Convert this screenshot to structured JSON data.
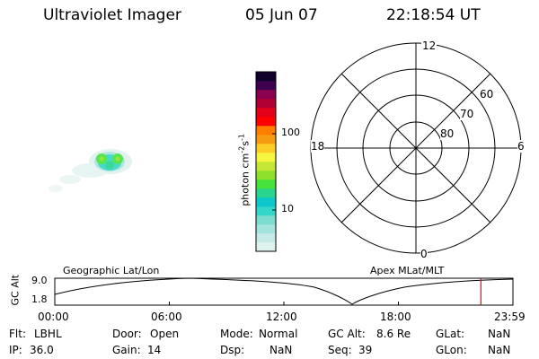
{
  "header": {
    "instrument": "Ultraviolet Imager",
    "date": "05 Jun 07",
    "time": "22:18:54 UT"
  },
  "colorbar": {
    "label_main": "photon cm",
    "label_exp1": "-2",
    "label_mid": "s",
    "label_exp2": "-1",
    "tick_100": "100",
    "tick_10": "10",
    "colors": [
      "#dff2ee",
      "#c6ebe7",
      "#a4e4dc",
      "#7cdccf",
      "#33d6c8",
      "#0ec7cc",
      "#28d48e",
      "#46e23b",
      "#8ee02b",
      "#c4e634",
      "#f6f83f",
      "#fbcd26",
      "#f49b12",
      "#ff7e00",
      "#ff0000",
      "#e30019",
      "#b10033",
      "#8c0050",
      "#3f0050",
      "#10002a"
    ]
  },
  "polar": {
    "mlt_top": "12",
    "mlt_left": "18",
    "mlt_right": "6",
    "mlt_bottom": "0",
    "lat_60": "60",
    "lat_70": "70",
    "lat_80": "80"
  },
  "orbit": {
    "left_title": "Geographic Lat/Lon",
    "right_title": "Apex MLat/MLT",
    "ylabel": "GC Alt",
    "ytick_top": "9.0",
    "ytick_bottom": "1.8",
    "xticks": [
      "00:00",
      "06:00",
      "12:00",
      "18:00",
      "23:59"
    ],
    "marker_fraction": 0.93
  },
  "info": {
    "flt_label": "Flt:",
    "flt_value": "LBHL",
    "door_label": "Door:",
    "door_value": "Open",
    "mode_label": "Mode:",
    "mode_value": "Normal",
    "gcalt_label": "GC Alt:",
    "gcalt_value": "8.6 Re",
    "glat_label": "GLat:",
    "glat_value": "NaN",
    "ip_label": "IP:",
    "ip_value": "36.0",
    "gain_label": "Gain:",
    "gain_value": "14",
    "dsp_label": "Dsp:",
    "dsp_value": "NaN",
    "seq_label": "Seq:",
    "seq_value": "39",
    "glon_label": "GLon:",
    "glon_value": "NaN"
  }
}
